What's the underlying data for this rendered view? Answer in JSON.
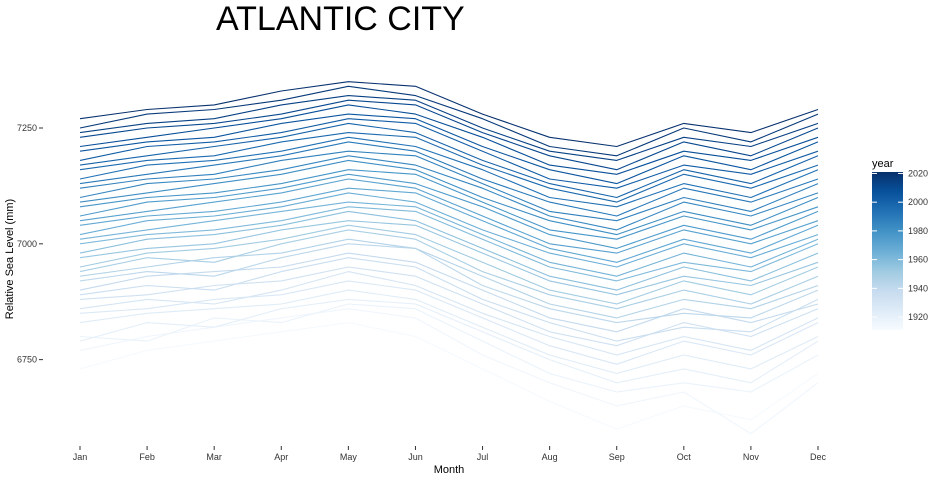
{
  "chart_data": {
    "type": "line",
    "title": "ATLANTIC CITY",
    "xlabel": "Month",
    "ylabel": "Relative Sea Level (mm)",
    "categories": [
      "Jan",
      "Feb",
      "Mar",
      "Apr",
      "May",
      "Jun",
      "Jul",
      "Aug",
      "Sep",
      "Oct",
      "Nov",
      "Dec"
    ],
    "y_ticks": [
      6750,
      7000,
      7250
    ],
    "ylim": [
      6570,
      7440
    ],
    "grid": false,
    "legend": {
      "title": "year",
      "position": "right",
      "type": "colorbar",
      "range": [
        1911,
        2021
      ],
      "ticks": [
        1920,
        1940,
        1960,
        1980,
        2000,
        2020
      ],
      "low_color": "#f7fbff",
      "high_color": "#08306b"
    },
    "color_scale": [
      "#f7fbff",
      "#deebf7",
      "#c6dbef",
      "#9ecae1",
      "#6baed6",
      "#4292c6",
      "#2171b5",
      "#08519c",
      "#08306b"
    ],
    "series": [
      {
        "year": 1912,
        "values": [
          6730,
          6770,
          6790,
          6810,
          6830,
          6800,
          6730,
          6660,
          6600,
          6650,
          6620,
          6720
        ]
      },
      {
        "year": 1915,
        "values": [
          6770,
          6800,
          6820,
          6840,
          6860,
          6840,
          6760,
          6700,
          6650,
          6680,
          6590,
          6700
        ]
      },
      {
        "year": 1918,
        "values": [
          6800,
          6790,
          6840,
          6830,
          6870,
          6860,
          6790,
          6720,
          6680,
          6700,
          6680,
          6760
        ]
      },
      {
        "year": 1921,
        "values": [
          6790,
          6830,
          6820,
          6860,
          6880,
          6870,
          6810,
          6750,
          6700,
          6730,
          6700,
          6790
        ]
      },
      {
        "year": 1924,
        "values": [
          6830,
          6850,
          6860,
          6870,
          6900,
          6880,
          6820,
          6760,
          6720,
          6760,
          6730,
          6800
        ]
      },
      {
        "year": 1927,
        "values": [
          6850,
          6860,
          6880,
          6890,
          6920,
          6900,
          6840,
          6780,
          6740,
          6790,
          6760,
          6830
        ]
      },
      {
        "year": 1930,
        "values": [
          6860,
          6880,
          6870,
          6900,
          6940,
          6910,
          6850,
          6800,
          6760,
          6800,
          6770,
          6840
        ]
      },
      {
        "year": 1933,
        "values": [
          6880,
          6890,
          6910,
          6920,
          6950,
          6930,
          6870,
          6810,
          6780,
          6830,
          6800,
          6860
        ]
      },
      {
        "year": 1936,
        "values": [
          6890,
          6910,
          6900,
          6940,
          6970,
          6950,
          6880,
          6830,
          6790,
          6820,
          6810,
          6880
        ]
      },
      {
        "year": 1939,
        "values": [
          6900,
          6930,
          6940,
          6950,
          6980,
          6960,
          6900,
          6840,
          6810,
          6860,
          6830,
          6870
        ]
      },
      {
        "year": 1942,
        "values": [
          6920,
          6940,
          6930,
          6970,
          7000,
          6990,
          6910,
          6860,
          6830,
          6850,
          6840,
          6900
        ]
      },
      {
        "year": 1945,
        "values": [
          6930,
          6950,
          6970,
          6980,
          7010,
          6990,
          6930,
          6870,
          6840,
          6880,
          6860,
          6910
        ]
      },
      {
        "year": 1948,
        "values": [
          6940,
          6970,
          6960,
          7000,
          7030,
          7010,
          6940,
          6890,
          6860,
          6900,
          6870,
          6930
        ]
      },
      {
        "year": 1951,
        "values": [
          6950,
          6980,
          6990,
          7010,
          7040,
          7020,
          6960,
          6900,
          6870,
          6920,
          6890,
          6950
        ]
      },
      {
        "year": 1954,
        "values": [
          6970,
          6990,
          7000,
          7030,
          7050,
          7040,
          6980,
          6920,
          6890,
          6930,
          6910,
          6960
        ]
      },
      {
        "year": 1957,
        "values": [
          6980,
          7010,
          7020,
          7040,
          7070,
          7050,
          6990,
          6930,
          6900,
          6950,
          6920,
          6980
        ]
      },
      {
        "year": 1960,
        "values": [
          7000,
          7020,
          7030,
          7050,
          7080,
          7070,
          7010,
          6950,
          6920,
          6960,
          6940,
          7000
        ]
      },
      {
        "year": 1963,
        "values": [
          7010,
          7030,
          7050,
          7070,
          7090,
          7080,
          7020,
          6960,
          6930,
          6980,
          6950,
          7010
        ]
      },
      {
        "year": 1966,
        "values": [
          7020,
          7050,
          7060,
          7080,
          7110,
          7090,
          7030,
          6980,
          6950,
          7000,
          6970,
          7020
        ]
      },
      {
        "year": 1969,
        "values": [
          7040,
          7060,
          7070,
          7090,
          7120,
          7110,
          7050,
          6990,
          6960,
          7010,
          6980,
          7040
        ]
      },
      {
        "year": 1972,
        "values": [
          7050,
          7070,
          7090,
          7110,
          7140,
          7120,
          7060,
          7000,
          6980,
          7030,
          7000,
          7050
        ]
      },
      {
        "year": 1975,
        "values": [
          7060,
          7090,
          7100,
          7120,
          7150,
          7130,
          7080,
          7020,
          6990,
          7040,
          7010,
          7070
        ]
      },
      {
        "year": 1978,
        "values": [
          7080,
          7100,
          7110,
          7130,
          7160,
          7150,
          7090,
          7030,
          7010,
          7060,
          7030,
          7080
        ]
      },
      {
        "year": 1981,
        "values": [
          7090,
          7110,
          7130,
          7150,
          7180,
          7160,
          7100,
          7050,
          7020,
          7070,
          7040,
          7100
        ]
      },
      {
        "year": 1984,
        "values": [
          7100,
          7130,
          7140,
          7160,
          7190,
          7170,
          7120,
          7060,
          7030,
          7090,
          7060,
          7110
        ]
      },
      {
        "year": 1987,
        "values": [
          7120,
          7140,
          7150,
          7180,
          7200,
          7190,
          7130,
          7070,
          7050,
          7100,
          7070,
          7130
        ]
      },
      {
        "year": 1990,
        "values": [
          7130,
          7150,
          7170,
          7190,
          7220,
          7200,
          7140,
          7090,
          7060,
          7120,
          7090,
          7140
        ]
      },
      {
        "year": 1993,
        "values": [
          7140,
          7170,
          7180,
          7200,
          7230,
          7210,
          7160,
          7100,
          7080,
          7130,
          7100,
          7160
        ]
      },
      {
        "year": 1996,
        "values": [
          7160,
          7180,
          7190,
          7220,
          7240,
          7230,
          7170,
          7120,
          7090,
          7150,
          7120,
          7170
        ]
      },
      {
        "year": 1999,
        "values": [
          7170,
          7190,
          7210,
          7230,
          7260,
          7240,
          7180,
          7130,
          7100,
          7160,
          7130,
          7190
        ]
      },
      {
        "year": 2002,
        "values": [
          7180,
          7210,
          7220,
          7240,
          7270,
          7260,
          7200,
          7140,
          7120,
          7170,
          7150,
          7200
        ]
      },
      {
        "year": 2005,
        "values": [
          7200,
          7220,
          7230,
          7260,
          7280,
          7270,
          7210,
          7160,
          7130,
          7190,
          7160,
          7220
        ]
      },
      {
        "year": 2008,
        "values": [
          7210,
          7230,
          7250,
          7270,
          7300,
          7280,
          7230,
          7170,
          7150,
          7200,
          7180,
          7230
        ]
      },
      {
        "year": 2011,
        "values": [
          7230,
          7250,
          7260,
          7280,
          7310,
          7300,
          7240,
          7190,
          7160,
          7220,
          7190,
          7250
        ]
      },
      {
        "year": 2014,
        "values": [
          7240,
          7260,
          7270,
          7300,
          7320,
          7310,
          7250,
          7200,
          7180,
          7230,
          7210,
          7260
        ]
      },
      {
        "year": 2017,
        "values": [
          7250,
          7280,
          7290,
          7310,
          7340,
          7320,
          7270,
          7210,
          7190,
          7250,
          7220,
          7280
        ]
      },
      {
        "year": 2020,
        "values": [
          7270,
          7290,
          7300,
          7330,
          7350,
          7340,
          7280,
          7230,
          7210,
          7260,
          7240,
          7290
        ]
      }
    ]
  }
}
